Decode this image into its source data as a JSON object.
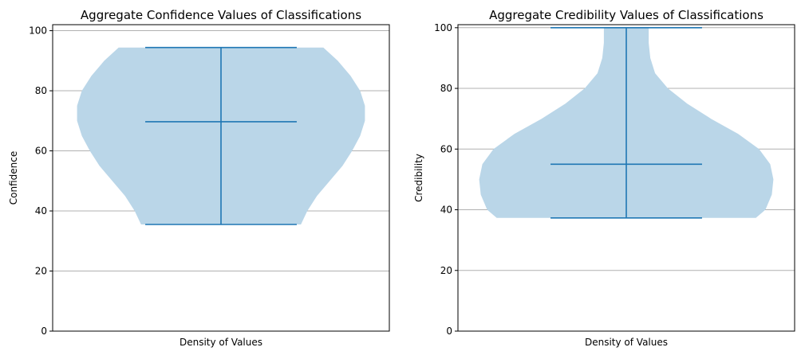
{
  "chart_data": [
    {
      "type": "violin",
      "title": "Aggregate Confidence Values of Classifications",
      "xlabel": "Density of Values",
      "ylabel": "Confidence",
      "ylim": [
        0,
        102
      ],
      "yticks": [
        0,
        20,
        40,
        60,
        80,
        100
      ],
      "grid": "y",
      "min": 35.5,
      "median": 69.7,
      "max": 94.4,
      "density_width": [
        [
          35.5,
          0.5
        ],
        [
          40,
          0.54
        ],
        [
          45,
          0.6
        ],
        [
          50,
          0.68
        ],
        [
          55,
          0.76
        ],
        [
          60,
          0.82
        ],
        [
          65,
          0.87
        ],
        [
          70,
          0.9
        ],
        [
          75,
          0.9
        ],
        [
          80,
          0.87
        ],
        [
          85,
          0.81
        ],
        [
          90,
          0.73
        ],
        [
          94.4,
          0.64
        ]
      ],
      "color": "#1f77b4",
      "fill": "#bad6e8"
    },
    {
      "type": "violin",
      "title": "Aggregate Credibility Values of Classifications",
      "xlabel": "Density of Values",
      "ylabel": "Credibility",
      "ylim": [
        0,
        101
      ],
      "yticks": [
        0,
        20,
        40,
        60,
        80,
        100
      ],
      "grid": "y",
      "min": 37.3,
      "median": 55.0,
      "max": 100,
      "density_width": [
        [
          37.3,
          0.81
        ],
        [
          40,
          0.87
        ],
        [
          45,
          0.91
        ],
        [
          50,
          0.92
        ],
        [
          55,
          0.9
        ],
        [
          60,
          0.83
        ],
        [
          65,
          0.7
        ],
        [
          70,
          0.53
        ],
        [
          75,
          0.38
        ],
        [
          80,
          0.26
        ],
        [
          85,
          0.18
        ],
        [
          90,
          0.15
        ],
        [
          95,
          0.14
        ],
        [
          100,
          0.14
        ]
      ],
      "color": "#1f77b4",
      "fill": "#bad6e8"
    }
  ]
}
